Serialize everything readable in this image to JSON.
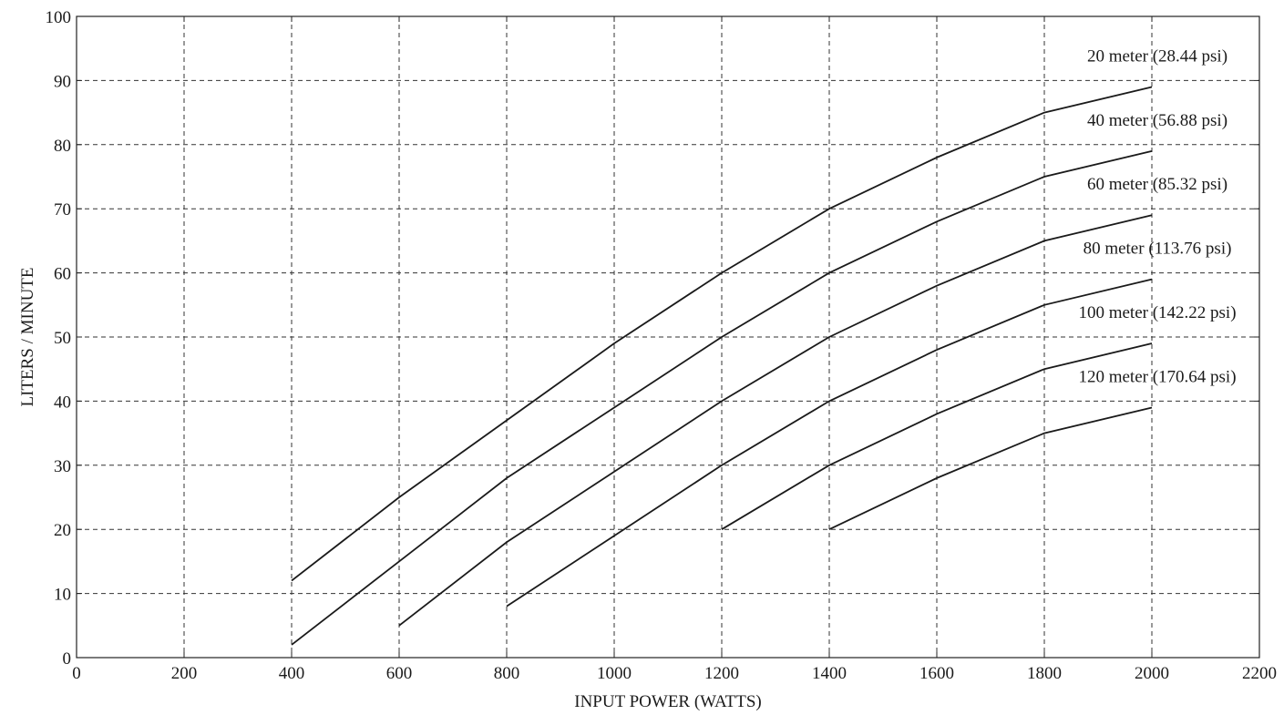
{
  "chart_data": {
    "type": "line",
    "title": "",
    "xlabel": "INPUT POWER (WATTS)",
    "ylabel": "LITERS / MINUTE",
    "xlim": [
      0,
      2200
    ],
    "ylim": [
      0,
      100
    ],
    "xticks": [
      0,
      200,
      400,
      600,
      800,
      1000,
      1200,
      1400,
      1600,
      1800,
      2000,
      2200
    ],
    "yticks": [
      0,
      10,
      20,
      30,
      40,
      50,
      60,
      70,
      80,
      90,
      100
    ],
    "grid": true,
    "series": [
      {
        "name": "20 meter (28.44 psi)",
        "x": [
          400,
          600,
          800,
          1000,
          1200,
          1400,
          1600,
          1800,
          2000
        ],
        "y": [
          12,
          25,
          37,
          49,
          60,
          70,
          78,
          85,
          89
        ]
      },
      {
        "name": "40 meter (56.88 psi)",
        "x": [
          400,
          600,
          800,
          1000,
          1200,
          1400,
          1600,
          1800,
          2000
        ],
        "y": [
          2,
          15,
          28,
          39,
          50,
          60,
          68,
          75,
          79
        ]
      },
      {
        "name": "60 meter (85.32 psi)",
        "x": [
          600,
          800,
          1000,
          1200,
          1400,
          1600,
          1800,
          2000
        ],
        "y": [
          5,
          18,
          29,
          40,
          50,
          58,
          65,
          69
        ]
      },
      {
        "name": "80 meter (113.76 psi)",
        "x": [
          800,
          1000,
          1200,
          1400,
          1600,
          1800,
          2000
        ],
        "y": [
          8,
          19,
          30,
          40,
          48,
          55,
          59
        ]
      },
      {
        "name": "100 meter (142.22 psi)",
        "x": [
          1200,
          1400,
          1600,
          1800,
          2000
        ],
        "y": [
          20,
          30,
          38,
          45,
          49
        ]
      },
      {
        "name": "120 meter (170.64 psi)",
        "x": [
          1400,
          1600,
          1800,
          2000
        ],
        "y": [
          20,
          28,
          35,
          39
        ]
      }
    ]
  }
}
